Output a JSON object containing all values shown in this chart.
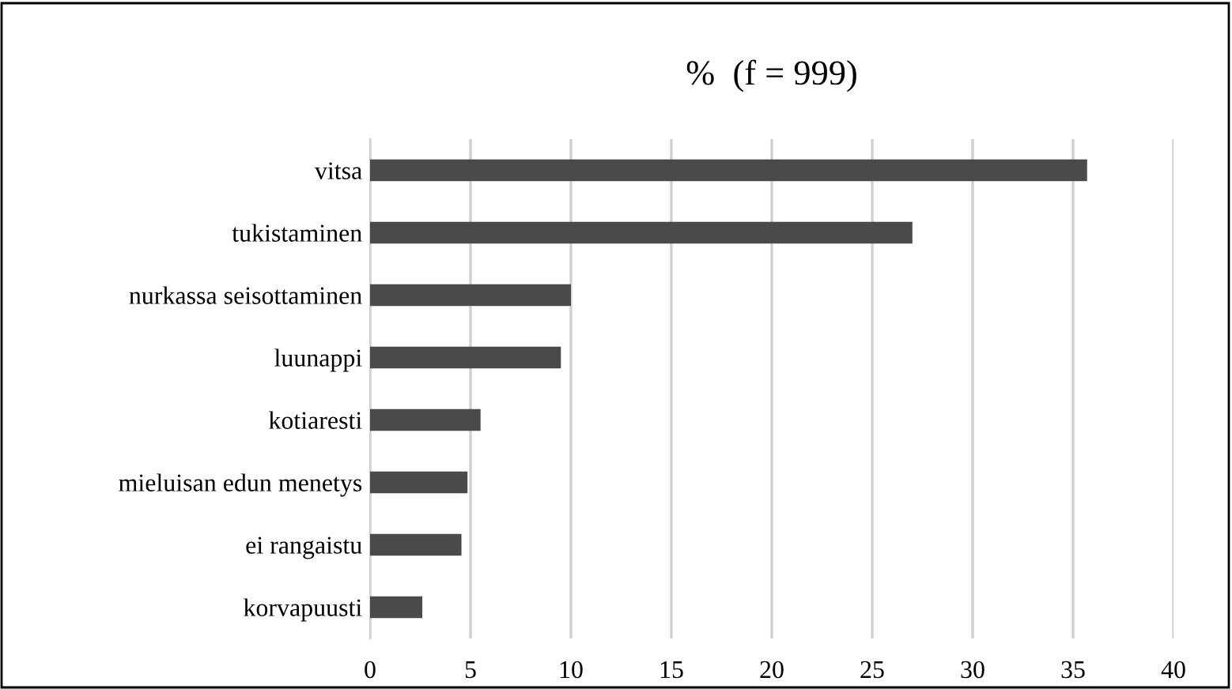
{
  "chart_data": {
    "type": "bar",
    "orientation": "horizontal",
    "title": "%  (f = 999)",
    "categories": [
      "vitsa",
      "tukistaminen",
      "nurkassa seisottaminen",
      "luunappi",
      "kotiaresti",
      "mieluisan edun menetys",
      "ei rangaistu",
      "korvapuusti"
    ],
    "values": [
      35.7,
      27.0,
      10.0,
      9.5,
      5.5,
      4.85,
      4.55,
      2.6
    ],
    "color": "#4a4a4a",
    "xlim": [
      0,
      40
    ],
    "xticks": [
      0,
      5,
      10,
      15,
      20,
      25,
      30,
      35,
      40
    ],
    "grid": "x"
  }
}
